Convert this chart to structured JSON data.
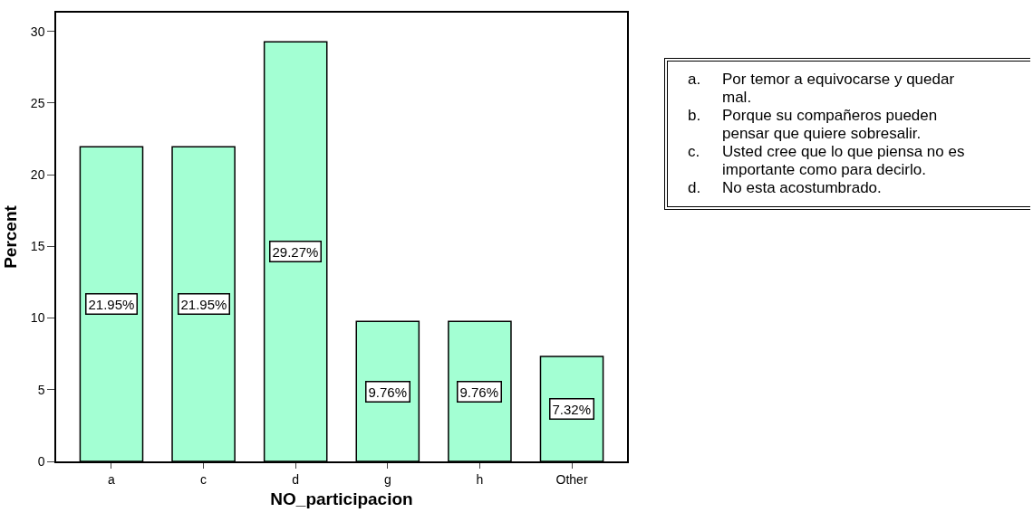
{
  "chart_data": {
    "type": "bar",
    "xlabel": "NO_participacion",
    "ylabel": "Percent",
    "categories": [
      "a",
      "c",
      "d",
      "g",
      "h",
      "Other"
    ],
    "values": [
      21.95,
      21.95,
      29.27,
      9.76,
      9.76,
      7.32
    ],
    "value_labels": [
      "21.95%",
      "21.95%",
      "29.27%",
      "9.76%",
      "9.76%",
      "7.32%"
    ],
    "color": "#a3ffd3",
    "ylim": [
      0,
      31.3
    ],
    "yticks": [
      0,
      5,
      10,
      15,
      20,
      25,
      30
    ],
    "annotations": [
      "a.\tPor temor a equivocarse y quedar mal.",
      "b.\tPorque su compañeros pueden pensar que quiere sobresalir.",
      "c.\tUsted cree que lo que piensa no es importante como para decirlo.",
      "d.\tNo esta acostumbrado."
    ]
  }
}
